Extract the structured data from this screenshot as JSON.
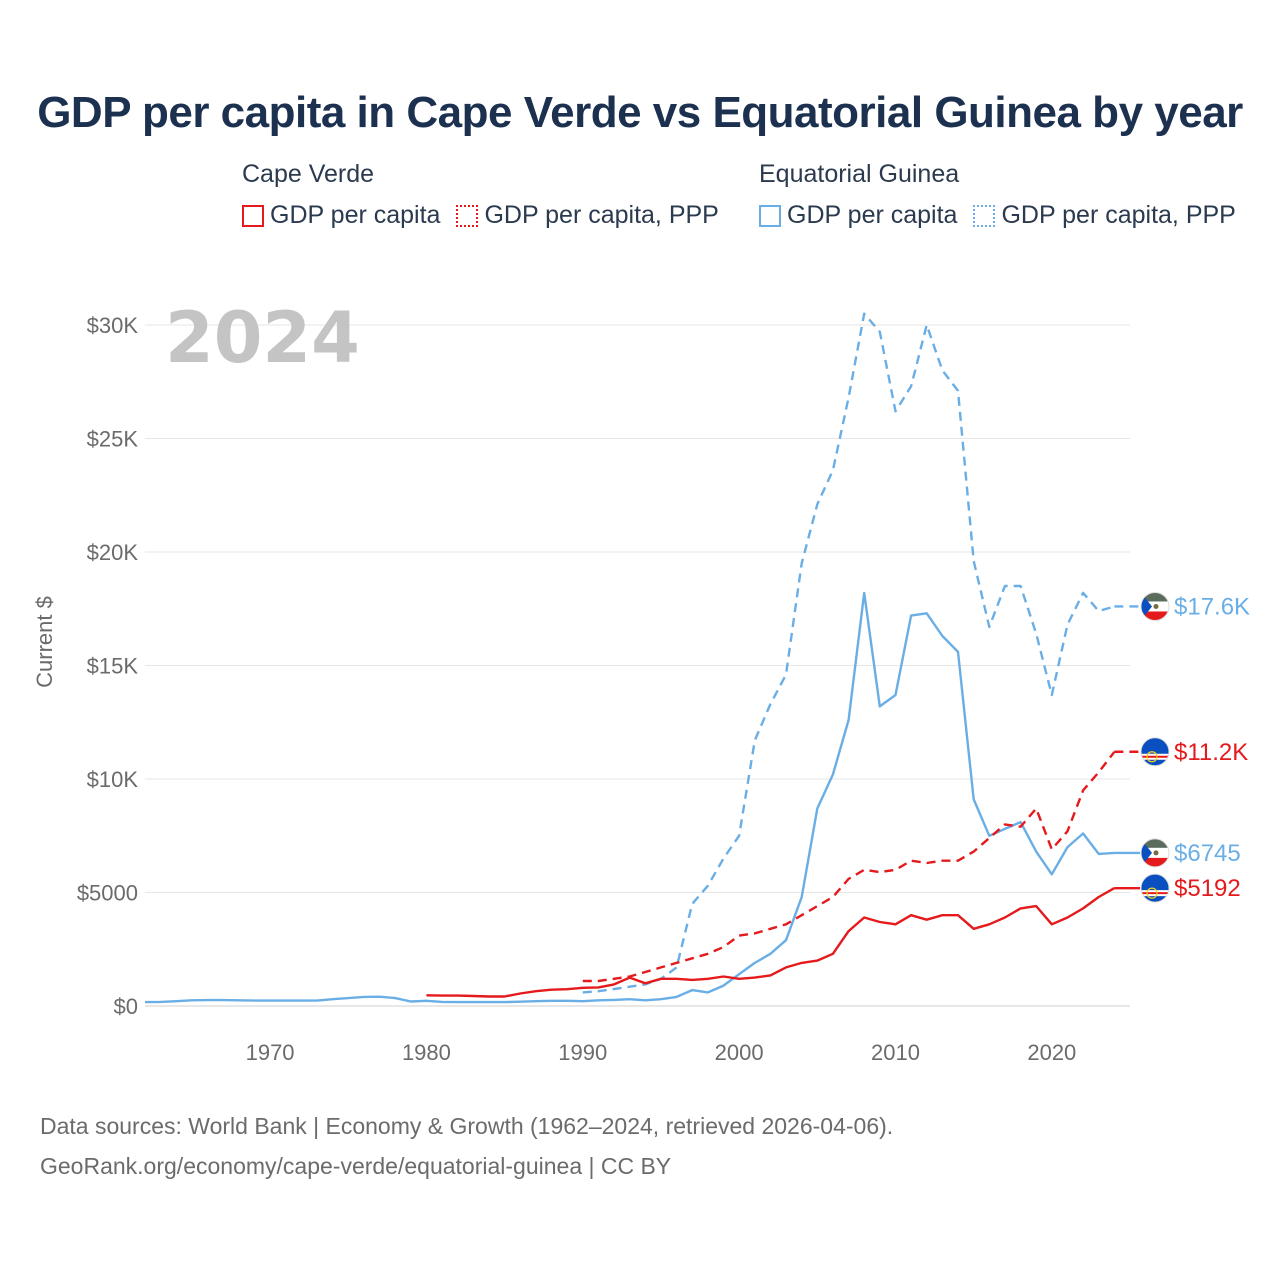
{
  "title": "GDP per capita in Cape Verde vs Equatorial Guinea by year",
  "legend": {
    "groups": [
      {
        "country": "Cape Verde",
        "items": [
          "GDP per capita",
          "GDP per capita, PPP"
        ]
      },
      {
        "country": "Equatorial Guinea",
        "items": [
          "GDP per capita",
          "GDP per capita, PPP"
        ]
      }
    ]
  },
  "footer": {
    "line1": "Data sources: World Bank | Economy & Growth (1962–2024, retrieved 2026-04-06).",
    "line2": "GeoRank.org/economy/cape-verde/equatorial-guinea | CC BY"
  },
  "colors": {
    "cape_verde": "#e41a1c",
    "equatorial_guinea": "#6aaee6",
    "grid": "#e6e6e6"
  },
  "chart_data": {
    "type": "line",
    "title": "GDP per capita in Cape Verde vs Equatorial Guinea by year",
    "year_label": "2024",
    "ylabel": "Current $",
    "xlabel": "",
    "xlim": [
      1962,
      2025
    ],
    "ylim": [
      0,
      31000
    ],
    "x_ticks": [
      1970,
      1980,
      1990,
      2000,
      2010,
      2020
    ],
    "y_ticks": [
      0,
      5000,
      10000,
      15000,
      20000,
      25000,
      30000
    ],
    "y_tick_labels": [
      "$0",
      "$5000",
      "$10K",
      "$15K",
      "$20K",
      "$25K",
      "$30K"
    ],
    "series": [
      {
        "name": "Equatorial Guinea GDP per capita, PPP",
        "country": "Equatorial Guinea",
        "style": "dashed",
        "color": "#6aaee6",
        "end_label": "$17.6K",
        "x": [
          1990,
          1991,
          1992,
          1993,
          1994,
          1995,
          1996,
          1997,
          1998,
          1999,
          2000,
          2001,
          2002,
          2003,
          2004,
          2005,
          2006,
          2007,
          2008,
          2009,
          2010,
          2011,
          2012,
          2013,
          2014,
          2015,
          2016,
          2017,
          2018,
          2019,
          2020,
          2021,
          2022,
          2023,
          2024
        ],
        "y": [
          600,
          650,
          750,
          850,
          950,
          1200,
          1700,
          4500,
          5300,
          6500,
          7500,
          11700,
          13300,
          14600,
          19500,
          22100,
          23600,
          26800,
          30500,
          29700,
          26200,
          27300,
          30000,
          28000,
          27100,
          19600,
          16700,
          18500,
          18500,
          16400,
          13700,
          16800,
          18200,
          17400,
          17600
        ]
      },
      {
        "name": "Equatorial Guinea GDP per capita",
        "country": "Equatorial Guinea",
        "style": "solid",
        "color": "#6aaee6",
        "end_label": "$6745",
        "x": [
          1962,
          1963,
          1964,
          1965,
          1966,
          1967,
          1968,
          1969,
          1970,
          1971,
          1972,
          1973,
          1974,
          1975,
          1976,
          1977,
          1978,
          1979,
          1980,
          1981,
          1982,
          1983,
          1984,
          1985,
          1986,
          1987,
          1988,
          1989,
          1990,
          1991,
          1992,
          1993,
          1994,
          1995,
          1996,
          1997,
          1998,
          1999,
          2000,
          2001,
          2002,
          2003,
          2004,
          2005,
          2006,
          2007,
          2008,
          2009,
          2010,
          2011,
          2012,
          2013,
          2014,
          2015,
          2016,
          2017,
          2018,
          2019,
          2020,
          2021,
          2022,
          2023,
          2024
        ],
        "y": [
          170,
          180,
          210,
          250,
          260,
          260,
          250,
          240,
          240,
          240,
          240,
          240,
          300,
          350,
          400,
          410,
          350,
          200,
          230,
          180,
          170,
          170,
          170,
          170,
          190,
          210,
          230,
          230,
          210,
          250,
          270,
          300,
          250,
          300,
          400,
          700,
          600,
          900,
          1400,
          1900,
          2300,
          2900,
          4800,
          8700,
          10200,
          12600,
          18200,
          13200,
          13700,
          17200,
          17300,
          16300,
          15600,
          9100,
          7500,
          7800,
          8100,
          6800,
          5800,
          7000,
          7600,
          6700,
          6745
        ]
      },
      {
        "name": "Cape Verde GDP per capita, PPP",
        "country": "Cape Verde",
        "style": "dashed",
        "color": "#e41a1c",
        "end_label": "$11.2K",
        "x": [
          1990,
          1991,
          1992,
          1993,
          1994,
          1995,
          1996,
          1997,
          1998,
          1999,
          2000,
          2001,
          2002,
          2003,
          2004,
          2005,
          2006,
          2007,
          2008,
          2009,
          2010,
          2011,
          2012,
          2013,
          2014,
          2015,
          2016,
          2017,
          2018,
          2019,
          2020,
          2021,
          2022,
          2023,
          2024
        ],
        "y": [
          1100,
          1100,
          1200,
          1300,
          1500,
          1700,
          1900,
          2100,
          2300,
          2600,
          3100,
          3200,
          3400,
          3600,
          4000,
          4400,
          4800,
          5600,
          6000,
          5900,
          6000,
          6400,
          6300,
          6400,
          6400,
          6800,
          7400,
          8000,
          7900,
          8700,
          6900,
          7700,
          9500,
          10300,
          11200
        ]
      },
      {
        "name": "Cape Verde GDP per capita",
        "country": "Cape Verde",
        "style": "solid",
        "color": "#e41a1c",
        "end_label": "$5192",
        "x": [
          1980,
          1981,
          1982,
          1983,
          1984,
          1985,
          1986,
          1987,
          1988,
          1989,
          1990,
          1991,
          1992,
          1993,
          1994,
          1995,
          1996,
          1997,
          1998,
          1999,
          2000,
          2001,
          2002,
          2003,
          2004,
          2005,
          2006,
          2007,
          2008,
          2009,
          2010,
          2011,
          2012,
          2013,
          2014,
          2015,
          2016,
          2017,
          2018,
          2019,
          2020,
          2021,
          2022,
          2023,
          2024
        ],
        "y": [
          470,
          460,
          460,
          440,
          420,
          420,
          550,
          650,
          720,
          740,
          800,
          820,
          950,
          1250,
          1000,
          1200,
          1200,
          1150,
          1200,
          1300,
          1200,
          1250,
          1350,
          1700,
          1900,
          2000,
          2300,
          3300,
          3900,
          3700,
          3600,
          4000,
          3800,
          4000,
          4000,
          3400,
          3600,
          3900,
          4300,
          4400,
          3600,
          3900,
          4300,
          4800,
          5192
        ]
      }
    ]
  }
}
